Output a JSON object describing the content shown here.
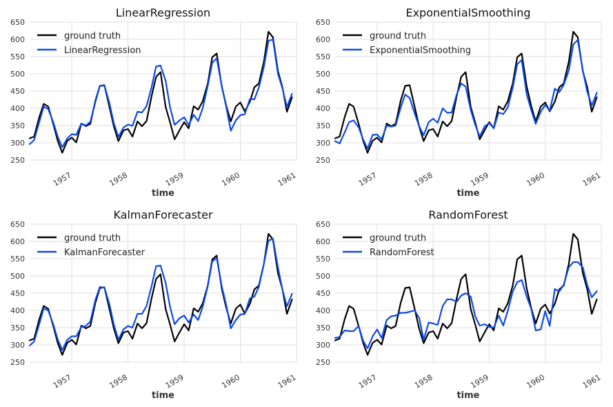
{
  "figure": {
    "layout": "2x2 grid of time-series comparison plots"
  },
  "chart_data": [
    {
      "type": "line",
      "title": "LinearRegression",
      "xlabel": "time",
      "ylabel": "",
      "ylim": [
        250,
        650
      ],
      "xlim": [
        1956.25,
        1961.0
      ],
      "yticks": [
        250,
        300,
        350,
        400,
        450,
        500,
        550,
        600,
        650
      ],
      "xticks": [
        1957,
        1958,
        1959,
        1960,
        1961
      ],
      "xtick_labels": [
        "1957",
        "1958",
        "1959",
        "1960",
        "1961"
      ],
      "grid": true,
      "legend": "top-left",
      "x": [
        1956.25,
        1956.33,
        1956.42,
        1956.5,
        1956.58,
        1956.67,
        1956.75,
        1956.83,
        1956.92,
        1957.0,
        1957.08,
        1957.17,
        1957.25,
        1957.33,
        1957.42,
        1957.5,
        1957.58,
        1957.67,
        1957.75,
        1957.83,
        1957.92,
        1958.0,
        1958.08,
        1958.17,
        1958.25,
        1958.33,
        1958.42,
        1958.5,
        1958.58,
        1958.67,
        1958.75,
        1958.83,
        1958.92,
        1959.0,
        1959.08,
        1959.17,
        1959.25,
        1959.33,
        1959.42,
        1959.5,
        1959.58,
        1959.67,
        1959.75,
        1959.83,
        1959.92,
        1960.0,
        1960.08,
        1960.17,
        1960.25,
        1960.33,
        1960.42,
        1960.5,
        1960.58,
        1960.67,
        1960.75,
        1960.83,
        1960.92
      ],
      "series": [
        {
          "name": "ground truth",
          "color": "#000000",
          "values": [
            313,
            318,
            374,
            413,
            405,
            355,
            306,
            271,
            306,
            315,
            301,
            356,
            348,
            355,
            422,
            465,
            467,
            404,
            347,
            305,
            336,
            340,
            318,
            362,
            348,
            363,
            435,
            491,
            505,
            404,
            359,
            310,
            337,
            360,
            342,
            406,
            396,
            420,
            472,
            548,
            559,
            463,
            407,
            362,
            405,
            417,
            391,
            419,
            461,
            472,
            535,
            622,
            606,
            508,
            461,
            390,
            432
          ]
        },
        {
          "name": "LinearRegression",
          "color": "#0b49e6",
          "values": [
            296,
            308,
            360,
            405,
            398,
            360,
            318,
            287,
            313,
            325,
            323,
            356,
            350,
            361,
            418,
            465,
            466,
            415,
            356,
            317,
            344,
            353,
            349,
            390,
            388,
            406,
            461,
            521,
            524,
            480,
            402,
            352,
            365,
            374,
            352,
            381,
            363,
            400,
            465,
            532,
            545,
            465,
            403,
            335,
            365,
            380,
            383,
            427,
            426,
            460,
            520,
            595,
            600,
            500,
            458,
            404,
            442
          ]
        }
      ]
    },
    {
      "type": "line",
      "title": "ExponentialSmoothing",
      "xlabel": "time",
      "ylabel": "",
      "ylim": [
        250,
        650
      ],
      "xlim": [
        1956.25,
        1961.0
      ],
      "yticks": [
        250,
        300,
        350,
        400,
        450,
        500,
        550,
        600,
        650
      ],
      "xticks": [
        1957,
        1958,
        1959,
        1960,
        1961
      ],
      "xtick_labels": [
        "1957",
        "1958",
        "1959",
        "1960",
        "1961"
      ],
      "grid": true,
      "legend": "top-left",
      "x": [
        1956.25,
        1956.33,
        1956.42,
        1956.5,
        1956.58,
        1956.67,
        1956.75,
        1956.83,
        1956.92,
        1957.0,
        1957.08,
        1957.17,
        1957.25,
        1957.33,
        1957.42,
        1957.5,
        1957.58,
        1957.67,
        1957.75,
        1957.83,
        1957.92,
        1958.0,
        1958.08,
        1958.17,
        1958.25,
        1958.33,
        1958.42,
        1958.5,
        1958.58,
        1958.67,
        1958.75,
        1958.83,
        1958.92,
        1959.0,
        1959.08,
        1959.17,
        1959.25,
        1959.33,
        1959.42,
        1959.5,
        1959.58,
        1959.67,
        1959.75,
        1959.83,
        1959.92,
        1960.0,
        1960.08,
        1960.17,
        1960.25,
        1960.33,
        1960.42,
        1960.5,
        1960.58,
        1960.67,
        1960.75,
        1960.83,
        1960.92
      ],
      "series": [
        {
          "name": "ground truth",
          "color": "#000000",
          "values": [
            313,
            318,
            374,
            413,
            405,
            355,
            306,
            271,
            306,
            315,
            301,
            356,
            348,
            355,
            422,
            465,
            467,
            404,
            347,
            305,
            336,
            340,
            318,
            362,
            348,
            363,
            435,
            491,
            505,
            404,
            359,
            310,
            337,
            360,
            342,
            406,
            396,
            420,
            472,
            548,
            559,
            463,
            407,
            362,
            405,
            417,
            391,
            419,
            461,
            472,
            535,
            622,
            606,
            508,
            461,
            390,
            432
          ]
        },
        {
          "name": "ExponentialSmoothing",
          "color": "#0b49e6",
          "values": [
            305,
            298,
            330,
            360,
            365,
            345,
            310,
            283,
            323,
            324,
            310,
            350,
            347,
            350,
            402,
            440,
            430,
            385,
            348,
            322,
            360,
            370,
            358,
            400,
            387,
            388,
            440,
            472,
            463,
            395,
            352,
            318,
            348,
            357,
            342,
            388,
            383,
            402,
            460,
            528,
            540,
            440,
            395,
            355,
            390,
            410,
            393,
            457,
            447,
            468,
            510,
            585,
            598,
            510,
            448,
            408,
            445
          ]
        }
      ]
    },
    {
      "type": "line",
      "title": "KalmanForecaster",
      "xlabel": "time",
      "ylabel": "",
      "ylim": [
        250,
        650
      ],
      "xlim": [
        1956.25,
        1961.0
      ],
      "yticks": [
        250,
        300,
        350,
        400,
        450,
        500,
        550,
        600,
        650
      ],
      "xticks": [
        1957,
        1958,
        1959,
        1960,
        1961
      ],
      "xtick_labels": [
        "1957",
        "1958",
        "1959",
        "1960",
        "1961"
      ],
      "grid": true,
      "legend": "top-left",
      "x": [
        1956.25,
        1956.33,
        1956.42,
        1956.5,
        1956.58,
        1956.67,
        1956.75,
        1956.83,
        1956.92,
        1957.0,
        1957.08,
        1957.17,
        1957.25,
        1957.33,
        1957.42,
        1957.5,
        1957.58,
        1957.67,
        1957.75,
        1957.83,
        1957.92,
        1958.0,
        1958.08,
        1958.17,
        1958.25,
        1958.33,
        1958.42,
        1958.5,
        1958.58,
        1958.67,
        1958.75,
        1958.83,
        1958.92,
        1959.0,
        1959.08,
        1959.17,
        1959.25,
        1959.33,
        1959.42,
        1959.5,
        1959.58,
        1959.67,
        1959.75,
        1959.83,
        1959.92,
        1960.0,
        1960.08,
        1960.17,
        1960.25,
        1960.33,
        1960.42,
        1960.5,
        1960.58,
        1960.67,
        1960.75,
        1960.83,
        1960.92
      ],
      "series": [
        {
          "name": "ground truth",
          "color": "#000000",
          "values": [
            313,
            318,
            374,
            413,
            405,
            355,
            306,
            271,
            306,
            315,
            301,
            356,
            348,
            355,
            422,
            465,
            467,
            404,
            347,
            305,
            336,
            340,
            318,
            362,
            348,
            363,
            435,
            491,
            505,
            404,
            359,
            310,
            337,
            360,
            342,
            406,
            396,
            420,
            472,
            548,
            559,
            463,
            407,
            362,
            405,
            417,
            391,
            419,
            461,
            472,
            535,
            622,
            606,
            508,
            461,
            390,
            432
          ]
        },
        {
          "name": "KalmanForecaster",
          "color": "#0b49e6",
          "values": [
            298,
            310,
            360,
            406,
            400,
            360,
            316,
            285,
            315,
            325,
            325,
            352,
            355,
            368,
            430,
            468,
            466,
            418,
            358,
            315,
            345,
            355,
            350,
            390,
            390,
            413,
            470,
            528,
            530,
            480,
            410,
            360,
            378,
            385,
            365,
            388,
            372,
            410,
            470,
            542,
            552,
            470,
            415,
            348,
            372,
            388,
            390,
            435,
            440,
            468,
            535,
            602,
            608,
            525,
            460,
            412,
            448
          ]
        }
      ]
    },
    {
      "type": "line",
      "title": "RandomForest",
      "xlabel": "time",
      "ylabel": "",
      "ylim": [
        250,
        650
      ],
      "xlim": [
        1956.25,
        1961.0
      ],
      "yticks": [
        250,
        300,
        350,
        400,
        450,
        500,
        550,
        600,
        650
      ],
      "xticks": [
        1957,
        1958,
        1959,
        1960,
        1961
      ],
      "xtick_labels": [
        "1957",
        "1958",
        "1959",
        "1960",
        "1961"
      ],
      "grid": true,
      "legend": "top-left",
      "x": [
        1956.25,
        1956.33,
        1956.42,
        1956.5,
        1956.58,
        1956.67,
        1956.75,
        1956.83,
        1956.92,
        1957.0,
        1957.08,
        1957.17,
        1957.25,
        1957.33,
        1957.42,
        1957.5,
        1957.58,
        1957.67,
        1957.75,
        1957.83,
        1957.92,
        1958.0,
        1958.08,
        1958.17,
        1958.25,
        1958.33,
        1958.42,
        1958.5,
        1958.58,
        1958.67,
        1958.75,
        1958.83,
        1958.92,
        1959.0,
        1959.08,
        1959.17,
        1959.25,
        1959.33,
        1959.42,
        1959.5,
        1959.58,
        1959.67,
        1959.75,
        1959.83,
        1959.92,
        1960.0,
        1960.08,
        1960.17,
        1960.25,
        1960.33,
        1960.42,
        1960.5,
        1960.58,
        1960.67,
        1960.75,
        1960.83,
        1960.92
      ],
      "series": [
        {
          "name": "ground truth",
          "color": "#000000",
          "values": [
            313,
            318,
            374,
            413,
            405,
            355,
            306,
            271,
            306,
            315,
            301,
            356,
            348,
            355,
            422,
            465,
            467,
            404,
            347,
            305,
            336,
            340,
            318,
            362,
            348,
            363,
            435,
            491,
            505,
            404,
            359,
            310,
            337,
            360,
            342,
            406,
            396,
            420,
            472,
            548,
            559,
            463,
            407,
            362,
            405,
            417,
            391,
            419,
            461,
            472,
            535,
            622,
            606,
            508,
            461,
            390,
            432
          ]
        },
        {
          "name": "RandomForest",
          "color": "#0b49e6",
          "values": [
            320,
            323,
            342,
            340,
            340,
            355,
            312,
            290,
            325,
            345,
            320,
            372,
            383,
            385,
            393,
            393,
            396,
            400,
            378,
            315,
            365,
            362,
            358,
            413,
            432,
            432,
            425,
            443,
            450,
            440,
            383,
            356,
            360,
            352,
            350,
            385,
            356,
            398,
            455,
            482,
            488,
            440,
            405,
            342,
            345,
            398,
            355,
            462,
            455,
            475,
            525,
            540,
            540,
            525,
            473,
            438,
            456
          ]
        }
      ]
    }
  ]
}
